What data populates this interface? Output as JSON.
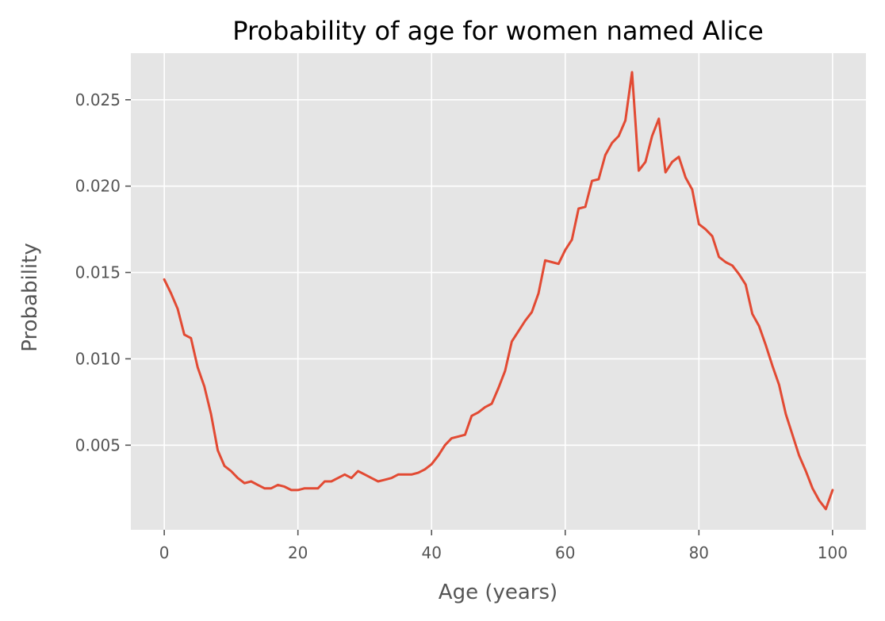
{
  "chart_data": {
    "type": "line",
    "title": "Probability of age for women named Alice",
    "xlabel": "Age (years)",
    "ylabel": "Probability",
    "xlim": [
      -5,
      105
    ],
    "ylim": [
      0.0001,
      0.0277
    ],
    "xticks": [
      0,
      20,
      40,
      60,
      80,
      100
    ],
    "yticks": [
      0.005,
      0.01,
      0.015,
      0.02,
      0.025
    ],
    "xtick_labels": [
      "0",
      "20",
      "40",
      "60",
      "80",
      "100"
    ],
    "ytick_labels": [
      "0.005",
      "0.010",
      "0.015",
      "0.020",
      "0.025"
    ],
    "grid": true,
    "background": "#e5e5e5",
    "line_color": "#e24a33",
    "series": [
      {
        "x": [
          0,
          1,
          2,
          3,
          4,
          5,
          6,
          7,
          8,
          9,
          10,
          11,
          12,
          13,
          14,
          15,
          16,
          17,
          18,
          19,
          20,
          21,
          22,
          23,
          24,
          25,
          26,
          27,
          28,
          29,
          30,
          31,
          32,
          33,
          34,
          35,
          36,
          37,
          38,
          39,
          40,
          41,
          42,
          43,
          44,
          45,
          46,
          47,
          48,
          49,
          50,
          51,
          52,
          53,
          54,
          55,
          56,
          57,
          58,
          59,
          60,
          61,
          62,
          63,
          64,
          65,
          66,
          67,
          68,
          69,
          70,
          71,
          72,
          73,
          74,
          75,
          76,
          77,
          78,
          79,
          80,
          81,
          82,
          83,
          84,
          85,
          86,
          87,
          88,
          89,
          90,
          91,
          92,
          93,
          94,
          95,
          96,
          97,
          98,
          99,
          100
        ],
        "y": [
          0.0146,
          0.0138,
          0.0129,
          0.0114,
          0.0112,
          0.0095,
          0.0084,
          0.0068,
          0.0047,
          0.0038,
          0.0035,
          0.0031,
          0.0028,
          0.0029,
          0.0027,
          0.0025,
          0.0025,
          0.0027,
          0.0026,
          0.0024,
          0.0024,
          0.0025,
          0.0025,
          0.0025,
          0.0029,
          0.0029,
          0.0031,
          0.0033,
          0.0031,
          0.0035,
          0.0033,
          0.0031,
          0.0029,
          0.003,
          0.0031,
          0.0033,
          0.0033,
          0.0033,
          0.0034,
          0.0036,
          0.0039,
          0.0044,
          0.005,
          0.0054,
          0.0055,
          0.0056,
          0.0067,
          0.0069,
          0.0072,
          0.0074,
          0.0083,
          0.0093,
          0.011,
          0.0116,
          0.0122,
          0.0127,
          0.0138,
          0.0157,
          0.0156,
          0.0155,
          0.0163,
          0.0169,
          0.0187,
          0.0188,
          0.0203,
          0.0204,
          0.0218,
          0.0225,
          0.0229,
          0.0238,
          0.0266,
          0.0209,
          0.0214,
          0.0229,
          0.0239,
          0.0208,
          0.0214,
          0.0217,
          0.0205,
          0.0198,
          0.0178,
          0.0175,
          0.0171,
          0.0159,
          0.0156,
          0.0154,
          0.0149,
          0.0143,
          0.0126,
          0.0119,
          0.0108,
          0.0096,
          0.0085,
          0.0068,
          0.0056,
          0.0044,
          0.0035,
          0.0025,
          0.0018,
          0.0013,
          0.0024
        ]
      }
    ]
  }
}
